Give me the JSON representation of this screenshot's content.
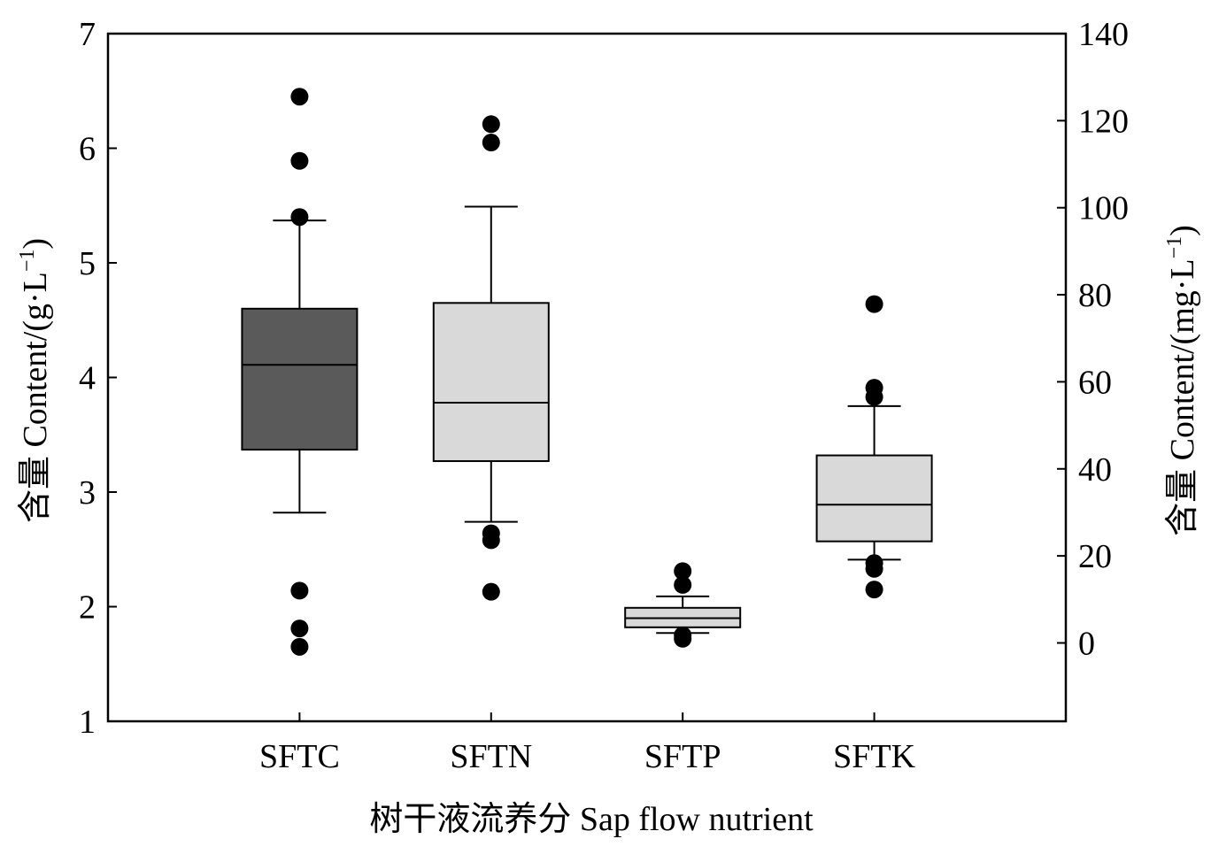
{
  "chart_data": {
    "type": "box",
    "xlabel": "树干液流养分  Sap flow nutrient",
    "ylabel_left": "含量  Content/(g·L",
    "ylabel_left_sup": "−1",
    "ylabel_left_close": ")",
    "ylabel_right": "含量  Content/(mg·L",
    "ylabel_right_sup": "−1",
    "ylabel_right_close": ")",
    "ylim_left": [
      1,
      7
    ],
    "yticks_left": [
      1,
      2,
      3,
      4,
      5,
      6,
      7
    ],
    "ylim_right": [
      -18,
      140
    ],
    "yticks_right": [
      0,
      20,
      40,
      60,
      80,
      100,
      120,
      140
    ],
    "categories": [
      "SFTC",
      "SFTN",
      "SFTP",
      "SFTK"
    ],
    "boxes": [
      {
        "name": "SFTC",
        "axis": "left",
        "fill": "#5a5a5a",
        "whisker_low": 2.82,
        "q1": 3.37,
        "median": 4.11,
        "q3": 4.6,
        "whisker_high": 5.37,
        "outliers": [
          6.45,
          5.89,
          5.4,
          2.14,
          1.81,
          1.65
        ]
      },
      {
        "name": "SFTN",
        "axis": "left",
        "fill": "#d9d9d9",
        "whisker_low": 2.74,
        "q1": 3.27,
        "median": 3.78,
        "q3": 4.65,
        "whisker_high": 5.49,
        "outliers": [
          6.21,
          6.05,
          2.64,
          2.58,
          2.13
        ]
      },
      {
        "name": "SFTP",
        "axis": "left",
        "fill": "#d9d9d9",
        "whisker_low": 1.77,
        "q1": 1.82,
        "median": 1.9,
        "q3": 1.99,
        "whisker_high": 2.09,
        "outliers": [
          2.31,
          2.19,
          1.75,
          1.72
        ]
      },
      {
        "name": "SFTK",
        "axis": "left",
        "fill": "#d9d9d9",
        "whisker_low": 2.41,
        "q1": 2.57,
        "median": 2.89,
        "q3": 3.32,
        "whisker_high": 3.75,
        "outliers": [
          4.64,
          3.91,
          3.83,
          2.38,
          2.33,
          2.15
        ]
      }
    ]
  }
}
